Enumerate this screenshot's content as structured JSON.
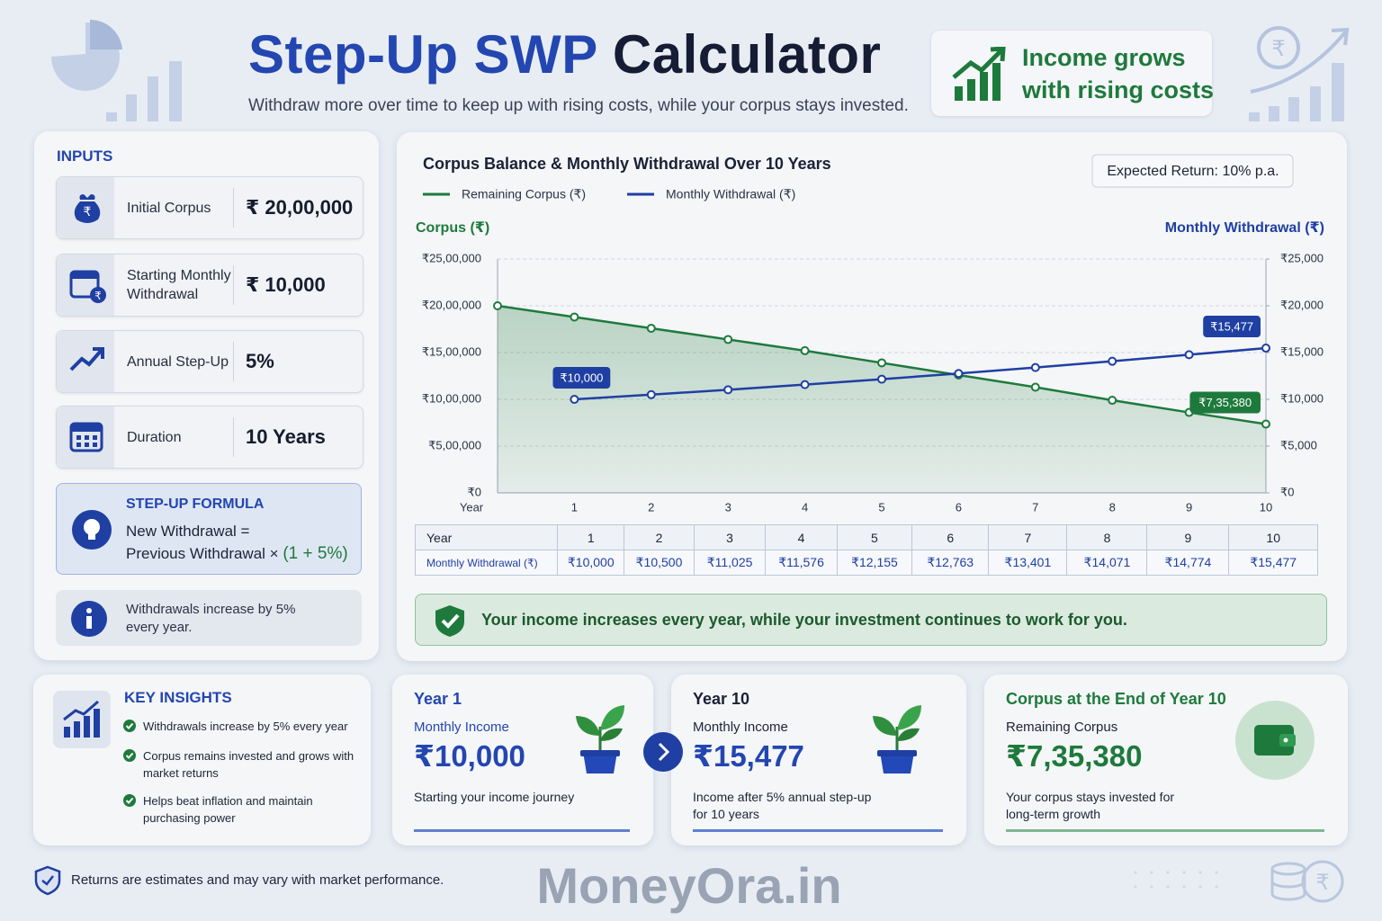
{
  "header": {
    "title_part1": "Step-Up SWP",
    "title_part2": "Calculator",
    "subtitle": "Withdraw more over time to keep up with rising costs, while your corpus stays invested.",
    "badge_lines": [
      "Income grows",
      "with rising costs"
    ]
  },
  "inputs": {
    "heading": "INPUTS",
    "items": [
      {
        "label": "Initial Corpus",
        "value": "₹ 20,00,000"
      },
      {
        "label": "Starting Monthly Withdrawal",
        "value": "₹ 10,000"
      },
      {
        "label": "Annual Step-Up",
        "value": "5%"
      },
      {
        "label": "Duration",
        "value": "10 Years"
      }
    ],
    "formula": {
      "heading": "STEP-UP FORMULA",
      "line1": "New Withdrawal =",
      "line2": "Previous Withdrawal ×",
      "highlight": "(1 + 5%)"
    },
    "note": "Withdrawals increase by 5% every year."
  },
  "chart_data": {
    "type": "line",
    "title": "Corpus Balance & Monthly Withdrawal Over 10 Years",
    "badge": "Expected Return: 10% p.a.",
    "x_label": "Year",
    "y_label": "Corpus (₹)",
    "y2_label": "Monthly Withdrawal (₹)",
    "categories": [
      null,
      "1",
      "2",
      "3",
      "4",
      "5",
      "6",
      "7",
      "8",
      "9",
      "10"
    ],
    "series": [
      {
        "name": "Remaining Corpus (₹)",
        "color": "#1e7a3c",
        "area": true,
        "values": [
          2000000,
          1880000,
          1760000,
          1640000,
          1520000,
          1390000,
          1260000,
          1130000,
          990000,
          860000,
          735380
        ],
        "value_labels": [
          null,
          null,
          null,
          null,
          null,
          null,
          null,
          null,
          null,
          null,
          "₹7,35,380"
        ]
      },
      {
        "name": "Monthly Withdrawal (₹)",
        "color": "#1f3fa3",
        "axis": "y2",
        "values": [
          null,
          10000,
          10500,
          11025,
          11576,
          12155,
          12763,
          13401,
          14071,
          14774,
          15477
        ],
        "value_labels": [
          null,
          "₹10,000",
          null,
          null,
          null,
          null,
          null,
          null,
          null,
          null,
          "₹15,477"
        ]
      }
    ],
    "ylim": [
      0,
      2500000
    ],
    "yticks": [
      {
        "value": 0,
        "label": "₹0"
      },
      {
        "value": 500000,
        "label": "₹5,00,000"
      },
      {
        "value": 1000000,
        "label": "₹10,00,000"
      },
      {
        "value": 1500000,
        "label": "₹15,00,000"
      },
      {
        "value": 2000000,
        "label": "₹20,00,000"
      },
      {
        "value": 2500000,
        "label": "₹25,00,000"
      }
    ],
    "y2lim": [
      0,
      25000
    ],
    "y2ticks": [
      {
        "value": 0,
        "label": "₹0"
      },
      {
        "value": 5000,
        "label": "₹5,000"
      },
      {
        "value": 10000,
        "label": "₹10,000"
      },
      {
        "value": 15000,
        "label": "₹15,000"
      },
      {
        "value": 20000,
        "label": "₹20,000"
      },
      {
        "value": 25000,
        "label": "₹25,000"
      }
    ],
    "grid": true
  },
  "table": {
    "header": [
      "Year",
      "1",
      "2",
      "3",
      "4",
      "5",
      "6",
      "7",
      "8",
      "9",
      "10"
    ],
    "rows": [
      [
        "Monthly Withdrawal (₹)",
        "₹10,000",
        "₹10,500",
        "₹11,025",
        "₹11,576",
        "₹12,155",
        "₹12,763",
        "₹13,401",
        "₹14,071",
        "₹14,774",
        "₹15,477"
      ]
    ]
  },
  "banner": "Your income increases every year, while your investment continues to work for you.",
  "insights": {
    "heading": "KEY INSIGHTS",
    "items": [
      "Withdrawals increase by 5% every year",
      "Corpus remains invested and grows with market returns",
      "Helps beat inflation and maintain purchasing power"
    ]
  },
  "cards": [
    {
      "heading": "Year 1",
      "label": "Monthly Income",
      "value": "₹10,000",
      "caption": "Starting your income journey"
    },
    {
      "heading": "Year 10",
      "label": "Monthly Income",
      "value": "₹15,477",
      "caption": "Income after 5% annual step-up for 10 years"
    },
    {
      "heading": "Corpus at the End of Year 10",
      "label": "Remaining Corpus",
      "value": "₹7,35,380",
      "caption": "Your corpus stays invested for long-term growth"
    }
  ],
  "footer": {
    "disclaimer": "Returns are estimates and may vary with market performance.",
    "brand": "MoneyOra.in"
  }
}
